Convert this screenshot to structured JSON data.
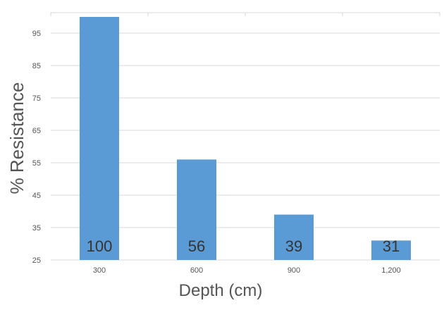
{
  "chart_data": {
    "type": "bar",
    "categories": [
      "300",
      "600",
      "900",
      "1,200"
    ],
    "values": [
      100,
      56,
      39,
      31
    ],
    "data_labels": [
      "100",
      "56",
      "39",
      "31"
    ],
    "xlabel": "Depth (cm)",
    "ylabel": "% Resistance",
    "ylim": [
      25,
      100
    ],
    "yticks": [
      25,
      35,
      45,
      55,
      65,
      75,
      85,
      95
    ],
    "grid": true,
    "legend": "none",
    "bar_color": "#5b9bd5",
    "grid_color": "#d9d9d9"
  }
}
